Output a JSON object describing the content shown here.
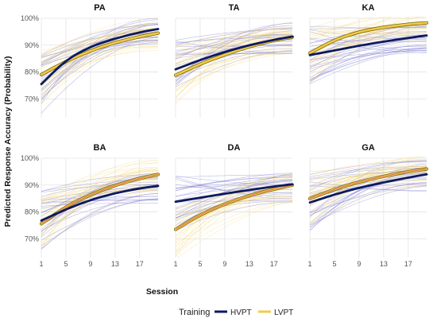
{
  "chart_data": {
    "type": "line",
    "xlabel": "Session",
    "ylabel": "Predicted Response Accuracy (Probability)",
    "x_ticks": [
      1,
      5,
      9,
      13,
      17
    ],
    "xlim": [
      1,
      20
    ],
    "legend": {
      "title": "Training",
      "position": "bottom",
      "entries": [
        {
          "name": "HVPT",
          "color": "#0d1a5e"
        },
        {
          "name": "LVPT",
          "color": "#f2c94c"
        }
      ]
    },
    "colors": {
      "HVPT": "#0d1a5e",
      "LVPT": "#f2c94c",
      "LVPT_mean_outline": "#7a6a00",
      "LVPT_mean_center_lower_row": "#e06a6a",
      "HVPT_individual": "#6a6acb",
      "LVPT_individual": "#f5d77a",
      "grid": "#e3e3e3"
    },
    "panels": [
      {
        "title": "PA",
        "ylim": [
          0.63,
          1.0
        ],
        "y_ticks": [
          "70%",
          "80%",
          "90%",
          "100%"
        ],
        "y_tick_values": [
          0.7,
          0.8,
          0.9,
          1.0
        ],
        "series": [
          {
            "name": "HVPT",
            "x": [
              1,
              5,
              9,
              13,
              17,
              20
            ],
            "values": [
              0.755,
              0.845,
              0.895,
              0.925,
              0.948,
              0.96
            ]
          },
          {
            "name": "LVPT",
            "x": [
              1,
              5,
              9,
              13,
              17,
              20
            ],
            "values": [
              0.79,
              0.84,
              0.88,
              0.91,
              0.932,
              0.945
            ]
          }
        ]
      },
      {
        "title": "TA",
        "ylim": [
          0.63,
          1.0
        ],
        "y_ticks": [
          "70%",
          "80%",
          "90%",
          "100%"
        ],
        "y_tick_values": [
          0.7,
          0.8,
          0.9,
          1.0
        ],
        "series": [
          {
            "name": "HVPT",
            "x": [
              1,
              5,
              9,
              13,
              17,
              20
            ],
            "values": [
              0.81,
              0.845,
              0.875,
              0.9,
              0.92,
              0.932
            ]
          },
          {
            "name": "LVPT",
            "x": [
              1,
              5,
              9,
              13,
              17,
              20
            ],
            "values": [
              0.788,
              0.83,
              0.865,
              0.895,
              0.918,
              0.93
            ]
          }
        ]
      },
      {
        "title": "KA",
        "ylim": [
          0.63,
          1.0
        ],
        "y_ticks": [
          "70%",
          "80%",
          "90%",
          "100%"
        ],
        "y_tick_values": [
          0.7,
          0.8,
          0.9,
          1.0
        ],
        "series": [
          {
            "name": "HVPT",
            "x": [
              1,
              5,
              9,
              13,
              17,
              20
            ],
            "values": [
              0.863,
              0.88,
              0.898,
              0.913,
              0.927,
              0.936
            ]
          },
          {
            "name": "LVPT",
            "x": [
              1,
              5,
              9,
              13,
              17,
              20
            ],
            "values": [
              0.87,
              0.92,
              0.95,
              0.967,
              0.978,
              0.983
            ]
          }
        ]
      },
      {
        "title": "BA",
        "ylim": [
          0.63,
          1.0
        ],
        "y_ticks": [
          "70%",
          "80%",
          "90%",
          "100%"
        ],
        "y_tick_values": [
          0.7,
          0.8,
          0.9,
          1.0
        ],
        "series": [
          {
            "name": "HVPT",
            "x": [
              1,
              5,
              9,
              13,
              17,
              20
            ],
            "values": [
              0.768,
              0.81,
              0.845,
              0.87,
              0.888,
              0.897
            ]
          },
          {
            "name": "LVPT",
            "x": [
              1,
              5,
              9,
              13,
              17,
              20
            ],
            "values": [
              0.756,
              0.82,
              0.865,
              0.9,
              0.925,
              0.94
            ]
          }
        ]
      },
      {
        "title": "DA",
        "ylim": [
          0.63,
          1.0
        ],
        "y_ticks": [
          "70%",
          "80%",
          "90%",
          "100%"
        ],
        "y_tick_values": [
          0.7,
          0.8,
          0.9,
          1.0
        ],
        "series": [
          {
            "name": "HVPT",
            "x": [
              1,
              5,
              9,
              13,
              17,
              20
            ],
            "values": [
              0.838,
              0.853,
              0.868,
              0.882,
              0.895,
              0.903
            ]
          },
          {
            "name": "LVPT",
            "x": [
              1,
              5,
              9,
              13,
              17,
              20
            ],
            "values": [
              0.735,
              0.79,
              0.83,
              0.862,
              0.885,
              0.9
            ]
          }
        ]
      },
      {
        "title": "GA",
        "ylim": [
          0.63,
          1.0
        ],
        "y_ticks": [
          "70%",
          "80%",
          "90%",
          "100%"
        ],
        "y_tick_values": [
          0.7,
          0.8,
          0.9,
          1.0
        ],
        "series": [
          {
            "name": "HVPT",
            "x": [
              1,
              5,
              9,
              13,
              17,
              20
            ],
            "values": [
              0.835,
              0.865,
              0.89,
              0.91,
              0.928,
              0.94
            ]
          },
          {
            "name": "LVPT",
            "x": [
              1,
              5,
              9,
              13,
              17,
              20
            ],
            "values": [
              0.85,
              0.885,
              0.912,
              0.933,
              0.95,
              0.96
            ]
          }
        ]
      }
    ],
    "grid": true
  }
}
